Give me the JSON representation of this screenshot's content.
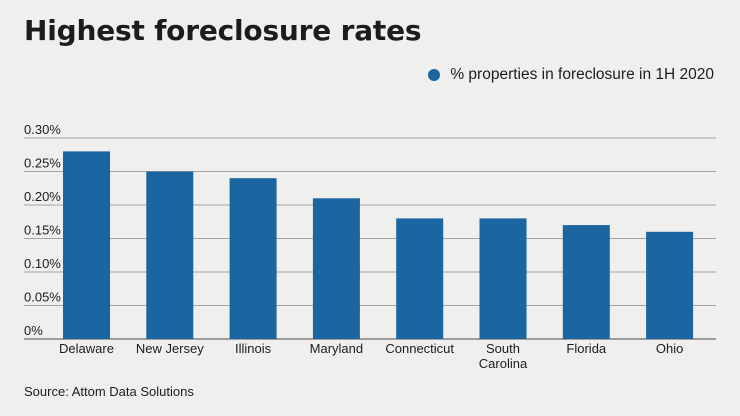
{
  "title": "Highest foreclosure rates",
  "source": "Source: Attom Data Solutions",
  "chart_data": {
    "type": "bar",
    "categories": [
      "Delaware",
      "New Jersey",
      "Illinois",
      "Maryland",
      "Connecticut",
      "South Carolina",
      "Florida",
      "Ohio"
    ],
    "category_lines": [
      [
        "Delaware"
      ],
      [
        "New Jersey"
      ],
      [
        "Illinois"
      ],
      [
        "Maryland"
      ],
      [
        "Connecticut"
      ],
      [
        "South",
        "Carolina"
      ],
      [
        "Florida"
      ],
      [
        "Ohio"
      ]
    ],
    "series": [
      {
        "name": "% properties in foreclosure in 1H 2020",
        "values": [
          0.28,
          0.25,
          0.24,
          0.21,
          0.18,
          0.18,
          0.17,
          0.16
        ],
        "color": "#1b65a0"
      }
    ],
    "y_ticks": [
      0,
      0.05,
      0.1,
      0.15,
      0.2,
      0.25,
      0.3
    ],
    "y_tick_labels": [
      "0%",
      "0.05%",
      "0.10%",
      "0.15%",
      "0.20%",
      "0.25%",
      "0.30%"
    ],
    "ylim": [
      0,
      0.3
    ],
    "grid": true,
    "legend_position": "top-right",
    "xlabel": "",
    "ylabel": ""
  }
}
